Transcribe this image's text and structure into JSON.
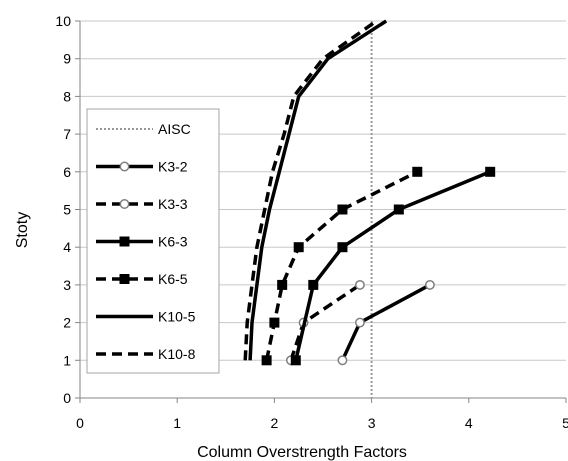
{
  "chart_data": {
    "type": "line",
    "title": "",
    "xlabel": "Column Overstrength Factors",
    "ylabel": "Stoty",
    "xlim": [
      0,
      5
    ],
    "ylim": [
      0,
      10
    ],
    "x_ticks": [
      "0",
      "1",
      "2",
      "3",
      "4",
      "5"
    ],
    "y_ticks": [
      "0",
      "1",
      "2",
      "3",
      "4",
      "5",
      "6",
      "7",
      "8",
      "9",
      "10"
    ],
    "grid": true,
    "legend_position": "left",
    "reference_line": {
      "name": "AISC",
      "x": 3,
      "style": "dotted",
      "color": "#999999"
    },
    "legend": [
      "AISC",
      "K3-2",
      "K3-3",
      "K6-3",
      "K6-5",
      "K10-5",
      "K10-8"
    ],
    "series": [
      {
        "name": "K3-2",
        "marker": "open-circle",
        "dash": "solid",
        "points": [
          [
            2.7,
            1
          ],
          [
            2.88,
            2
          ],
          [
            3.6,
            3
          ]
        ]
      },
      {
        "name": "K3-3",
        "marker": "open-circle",
        "dash": "dashed",
        "points": [
          [
            2.17,
            1
          ],
          [
            2.3,
            2
          ],
          [
            2.88,
            3
          ]
        ]
      },
      {
        "name": "K6-3",
        "marker": "filled-square",
        "dash": "solid",
        "points": [
          [
            2.22,
            1
          ],
          [
            2.4,
            3
          ],
          [
            2.7,
            4
          ],
          [
            3.28,
            5
          ],
          [
            4.22,
            6
          ]
        ]
      },
      {
        "name": "K6-5",
        "marker": "filled-square",
        "dash": "dashed",
        "points": [
          [
            1.92,
            1
          ],
          [
            2.0,
            2
          ],
          [
            2.08,
            3
          ],
          [
            2.25,
            4
          ],
          [
            2.7,
            5
          ],
          [
            3.47,
            6
          ]
        ]
      },
      {
        "name": "K10-5",
        "marker": "none",
        "dash": "solid",
        "points": [
          [
            1.75,
            1
          ],
          [
            1.77,
            2
          ],
          [
            1.82,
            3
          ],
          [
            1.87,
            4
          ],
          [
            1.95,
            5
          ],
          [
            2.05,
            6
          ],
          [
            2.15,
            7
          ],
          [
            2.25,
            8
          ],
          [
            2.55,
            9
          ],
          [
            3.15,
            10
          ]
        ]
      },
      {
        "name": "K10-8",
        "marker": "none",
        "dash": "dashed",
        "points": [
          [
            1.7,
            1
          ],
          [
            1.72,
            2
          ],
          [
            1.77,
            3
          ],
          [
            1.82,
            4
          ],
          [
            1.9,
            5
          ],
          [
            1.98,
            6
          ],
          [
            2.1,
            7
          ],
          [
            2.2,
            8
          ],
          [
            2.5,
            9
          ],
          [
            3.05,
            10
          ]
        ]
      }
    ]
  }
}
